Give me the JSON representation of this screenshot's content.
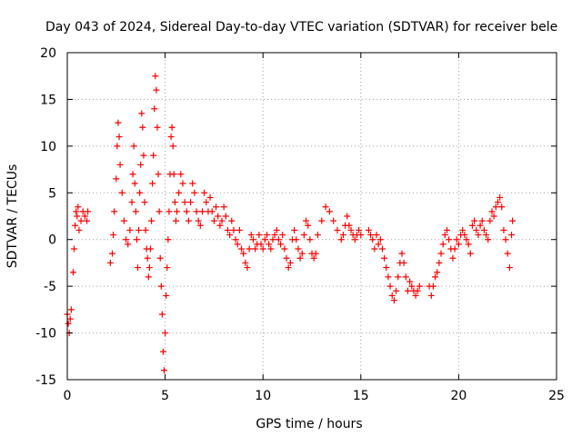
{
  "chart_data": {
    "type": "scatter",
    "title": "Day 043 of 2024, Sidereal Day-to-day VTEC variation (SDTVAR) for receiver bele",
    "xlabel": "GPS time / hours",
    "ylabel": "SDTVAR / TECUs",
    "xlim": [
      0,
      25
    ],
    "ylim": [
      -15,
      20
    ],
    "xticks": [
      0,
      5,
      10,
      15,
      20,
      25
    ],
    "yticks": [
      -15,
      -10,
      -5,
      0,
      5,
      10,
      15,
      20
    ],
    "grid": true,
    "marker": "+",
    "color": "#ff0000",
    "series": [
      {
        "name": "SDTVAR",
        "x": [
          0.0,
          0.05,
          0.1,
          0.15,
          0.2,
          0.3,
          0.35,
          0.4,
          0.45,
          0.5,
          0.55,
          0.6,
          0.7,
          0.8,
          0.9,
          1.0,
          1.05,
          2.2,
          2.3,
          2.35,
          2.4,
          2.5,
          2.55,
          2.6,
          2.65,
          2.7,
          2.8,
          2.9,
          3.0,
          3.1,
          3.2,
          3.3,
          3.35,
          3.4,
          3.45,
          3.5,
          3.55,
          3.6,
          3.65,
          3.7,
          3.75,
          3.8,
          3.85,
          3.9,
          3.95,
          4.0,
          4.05,
          4.1,
          4.15,
          4.2,
          4.25,
          4.3,
          4.35,
          4.4,
          4.45,
          4.5,
          4.55,
          4.6,
          4.65,
          4.7,
          4.75,
          4.8,
          4.85,
          4.9,
          4.95,
          5.0,
          5.05,
          5.1,
          5.15,
          5.2,
          5.25,
          5.3,
          5.35,
          5.4,
          5.45,
          5.5,
          5.55,
          5.6,
          5.7,
          5.8,
          5.9,
          6.0,
          6.1,
          6.2,
          6.3,
          6.4,
          6.5,
          6.6,
          6.7,
          6.8,
          6.9,
          7.0,
          7.1,
          7.2,
          7.3,
          7.4,
          7.5,
          7.6,
          7.7,
          7.8,
          7.9,
          8.0,
          8.1,
          8.2,
          8.3,
          8.4,
          8.5,
          8.6,
          8.7,
          8.8,
          8.9,
          9.0,
          9.1,
          9.2,
          9.3,
          9.4,
          9.5,
          9.6,
          9.7,
          9.8,
          9.9,
          10.0,
          10.1,
          10.2,
          10.3,
          10.4,
          10.5,
          10.6,
          10.7,
          10.8,
          10.9,
          11.0,
          11.1,
          11.2,
          11.3,
          11.4,
          11.5,
          11.6,
          11.7,
          11.8,
          11.9,
          12.0,
          12.1,
          12.2,
          12.3,
          12.4,
          12.5,
          12.6,
          12.7,
          12.8,
          13.0,
          13.2,
          13.4,
          13.6,
          13.8,
          14.0,
          14.1,
          14.2,
          14.3,
          14.4,
          14.5,
          14.6,
          14.7,
          14.8,
          14.9,
          15.0,
          15.4,
          15.5,
          15.6,
          15.7,
          15.8,
          15.9,
          16.0,
          16.1,
          16.2,
          16.3,
          16.4,
          16.5,
          16.6,
          16.7,
          16.8,
          16.9,
          17.0,
          17.1,
          17.2,
          17.3,
          17.4,
          17.5,
          17.6,
          17.7,
          17.8,
          17.9,
          18.0,
          18.5,
          18.6,
          18.7,
          18.8,
          18.9,
          19.0,
          19.1,
          19.2,
          19.3,
          19.4,
          19.5,
          19.6,
          19.7,
          19.8,
          19.9,
          20.0,
          20.1,
          20.2,
          20.3,
          20.4,
          20.5,
          20.6,
          20.7,
          20.8,
          20.9,
          21.0,
          21.1,
          21.2,
          21.3,
          21.4,
          21.5,
          21.6,
          21.7,
          21.8,
          21.9,
          22.0,
          22.1,
          22.2,
          22.3,
          22.4,
          22.5,
          22.6,
          22.7,
          22.75
        ],
        "y": [
          -8.0,
          -9.0,
          -10.0,
          -8.5,
          -7.5,
          -3.5,
          -1.0,
          1.5,
          3.0,
          2.5,
          3.5,
          1.0,
          2.0,
          3.0,
          2.5,
          2.0,
          3.0,
          -2.5,
          -1.5,
          0.5,
          3.0,
          6.5,
          10.0,
          12.5,
          11.0,
          8.0,
          5.0,
          2.0,
          0.0,
          -0.5,
          1.0,
          4.0,
          7.0,
          10.0,
          6.0,
          3.0,
          0.0,
          -3.0,
          1.0,
          5.0,
          8.0,
          13.5,
          12.0,
          9.0,
          4.0,
          1.0,
          -1.0,
          -2.0,
          -4.0,
          -3.0,
          -1.0,
          2.0,
          6.0,
          9.0,
          14.0,
          17.5,
          16.0,
          12.0,
          7.0,
          3.0,
          -2.0,
          -5.0,
          -8.0,
          -12.0,
          -14.0,
          -10.0,
          -6.0,
          -3.0,
          0.0,
          3.0,
          7.0,
          11.0,
          12.0,
          10.0,
          7.0,
          4.0,
          2.0,
          3.0,
          5.0,
          7.0,
          6.0,
          4.0,
          3.0,
          2.0,
          4.0,
          6.0,
          5.0,
          3.0,
          2.0,
          1.5,
          3.0,
          5.0,
          4.0,
          3.0,
          4.5,
          3.0,
          2.0,
          3.5,
          2.5,
          1.5,
          2.0,
          3.5,
          2.5,
          1.0,
          0.5,
          2.0,
          1.0,
          0.0,
          -0.5,
          1.0,
          -1.0,
          -1.5,
          -2.5,
          -3.0,
          -1.0,
          0.5,
          0.0,
          -1.0,
          -0.5,
          0.5,
          -0.5,
          -1.0,
          0.0,
          0.5,
          -0.5,
          -1.0,
          0.0,
          0.5,
          1.0,
          0.0,
          -0.5,
          0.5,
          -1.0,
          -2.0,
          -3.0,
          -2.5,
          0.0,
          1.0,
          0.0,
          -1.0,
          -2.0,
          -1.5,
          0.5,
          2.0,
          1.5,
          0.0,
          -1.5,
          -2.0,
          -1.5,
          0.5,
          2.0,
          3.5,
          3.0,
          2.0,
          1.0,
          0.0,
          0.5,
          1.5,
          2.5,
          1.5,
          1.0,
          0.5,
          0.0,
          0.5,
          1.0,
          0.5,
          1.0,
          0.5,
          0.0,
          -1.0,
          0.5,
          -0.5,
          0.0,
          -1.0,
          -2.0,
          -3.0,
          -4.0,
          -5.0,
          -6.0,
          -6.5,
          -5.5,
          -4.0,
          -2.5,
          -1.5,
          -2.5,
          -4.0,
          -5.5,
          -4.5,
          -5.0,
          -5.5,
          -6.0,
          -5.5,
          -5.0,
          -5.0,
          -6.0,
          -5.0,
          -4.0,
          -3.5,
          -2.5,
          -1.5,
          -0.5,
          0.5,
          1.0,
          0.0,
          -1.0,
          -2.0,
          -1.0,
          0.0,
          -0.5,
          0.5,
          1.0,
          0.5,
          0.0,
          -0.5,
          -1.5,
          1.5,
          2.0,
          1.0,
          0.5,
          1.5,
          2.0,
          1.0,
          0.5,
          0.0,
          2.0,
          3.0,
          2.5,
          3.5,
          4.0,
          4.5,
          3.5,
          1.0,
          0.0,
          -1.5,
          -3.0,
          0.5,
          2.0
        ]
      }
    ]
  }
}
